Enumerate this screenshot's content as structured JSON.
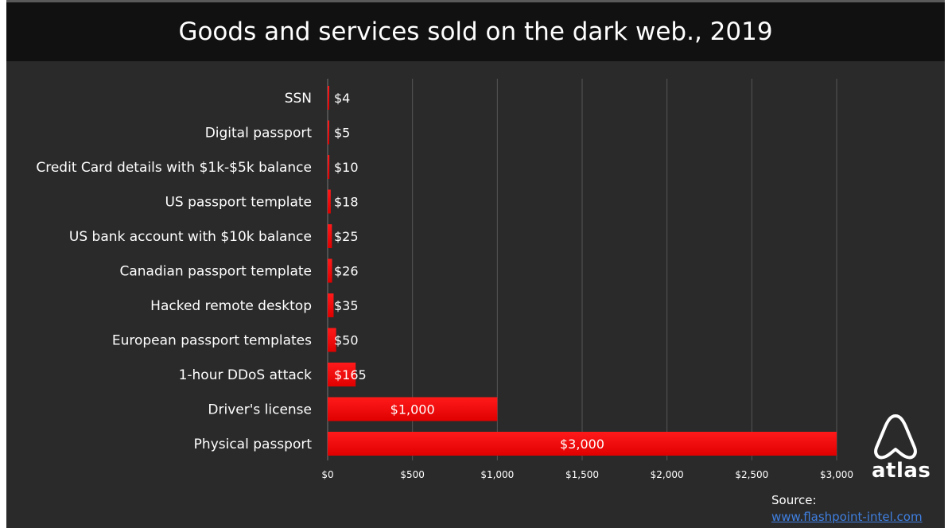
{
  "chart_data": {
    "type": "bar",
    "orientation": "horizontal",
    "title": "Goods and services sold on the dark web., 2019",
    "categories": [
      "SSN",
      "Digital passport",
      "Credit Card details with $1k-$5k balance",
      "US passport template",
      "US bank account with $10k balance",
      "Canadian passport template",
      "Hacked remote desktop",
      "European passport templates",
      "1-hour DDoS attack",
      "Driver's license",
      "Physical passport"
    ],
    "values": [
      4,
      5,
      10,
      18,
      25,
      26,
      35,
      50,
      165,
      1000,
      3000
    ],
    "data_labels": [
      "$4",
      "$5",
      "$10",
      "$18",
      "$25",
      "$26",
      "$35",
      "$50",
      "$165",
      "$1,000",
      "$3,000"
    ],
    "xlim": [
      0,
      3000
    ],
    "x_ticks": [
      0,
      500,
      1000,
      1500,
      2000,
      2500,
      3000
    ],
    "x_tick_labels": [
      "$0",
      "$500",
      "$1,000",
      "$1,500",
      "$2,000",
      "$2,500",
      "$3,000"
    ],
    "grid": true,
    "bar_color": "#e00000",
    "background_color": "#2a2a2a",
    "header_color": "#111111"
  },
  "source": {
    "label": "Source:",
    "link_text": "www.flashpoint-intel.com"
  },
  "logo": {
    "text": "atlas",
    "icon": "atlas-logo-icon"
  }
}
